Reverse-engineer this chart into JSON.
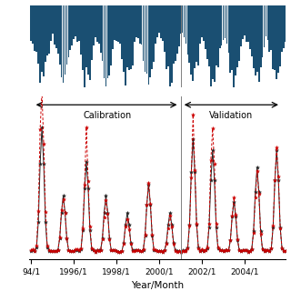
{
  "xlabel": "Year/Month",
  "split_year": 2001.0,
  "calib_label": "Calibration",
  "valid_label": "Validation",
  "bar_color": "#1a4f72",
  "observed_color": "#222222",
  "simulated_color": "#cc0000",
  "background_color": "#ffffff",
  "tick_labels": [
    "94/1",
    "1996/1",
    "1998/1",
    "2000/1",
    "2002/1",
    "2004/1"
  ],
  "tick_years": [
    1994,
    1996,
    1998,
    2000,
    2002,
    2004
  ],
  "x_min": 1993.9,
  "x_max": 2005.9,
  "peak_months": [
    7,
    7,
    8,
    7,
    7,
    7,
    7,
    8,
    7,
    7,
    8,
    7
  ],
  "peak_heights_obs": [
    2.2,
    1.0,
    1.6,
    1.0,
    0.7,
    1.2,
    0.7,
    2.0,
    1.8,
    0.9,
    1.5,
    1.8
  ],
  "peak_heights_sim_scale": [
    1.3,
    1.0,
    1.1,
    0.95,
    0.9,
    1.05,
    0.9,
    1.0,
    1.2,
    1.05,
    0.95,
    1.0
  ]
}
